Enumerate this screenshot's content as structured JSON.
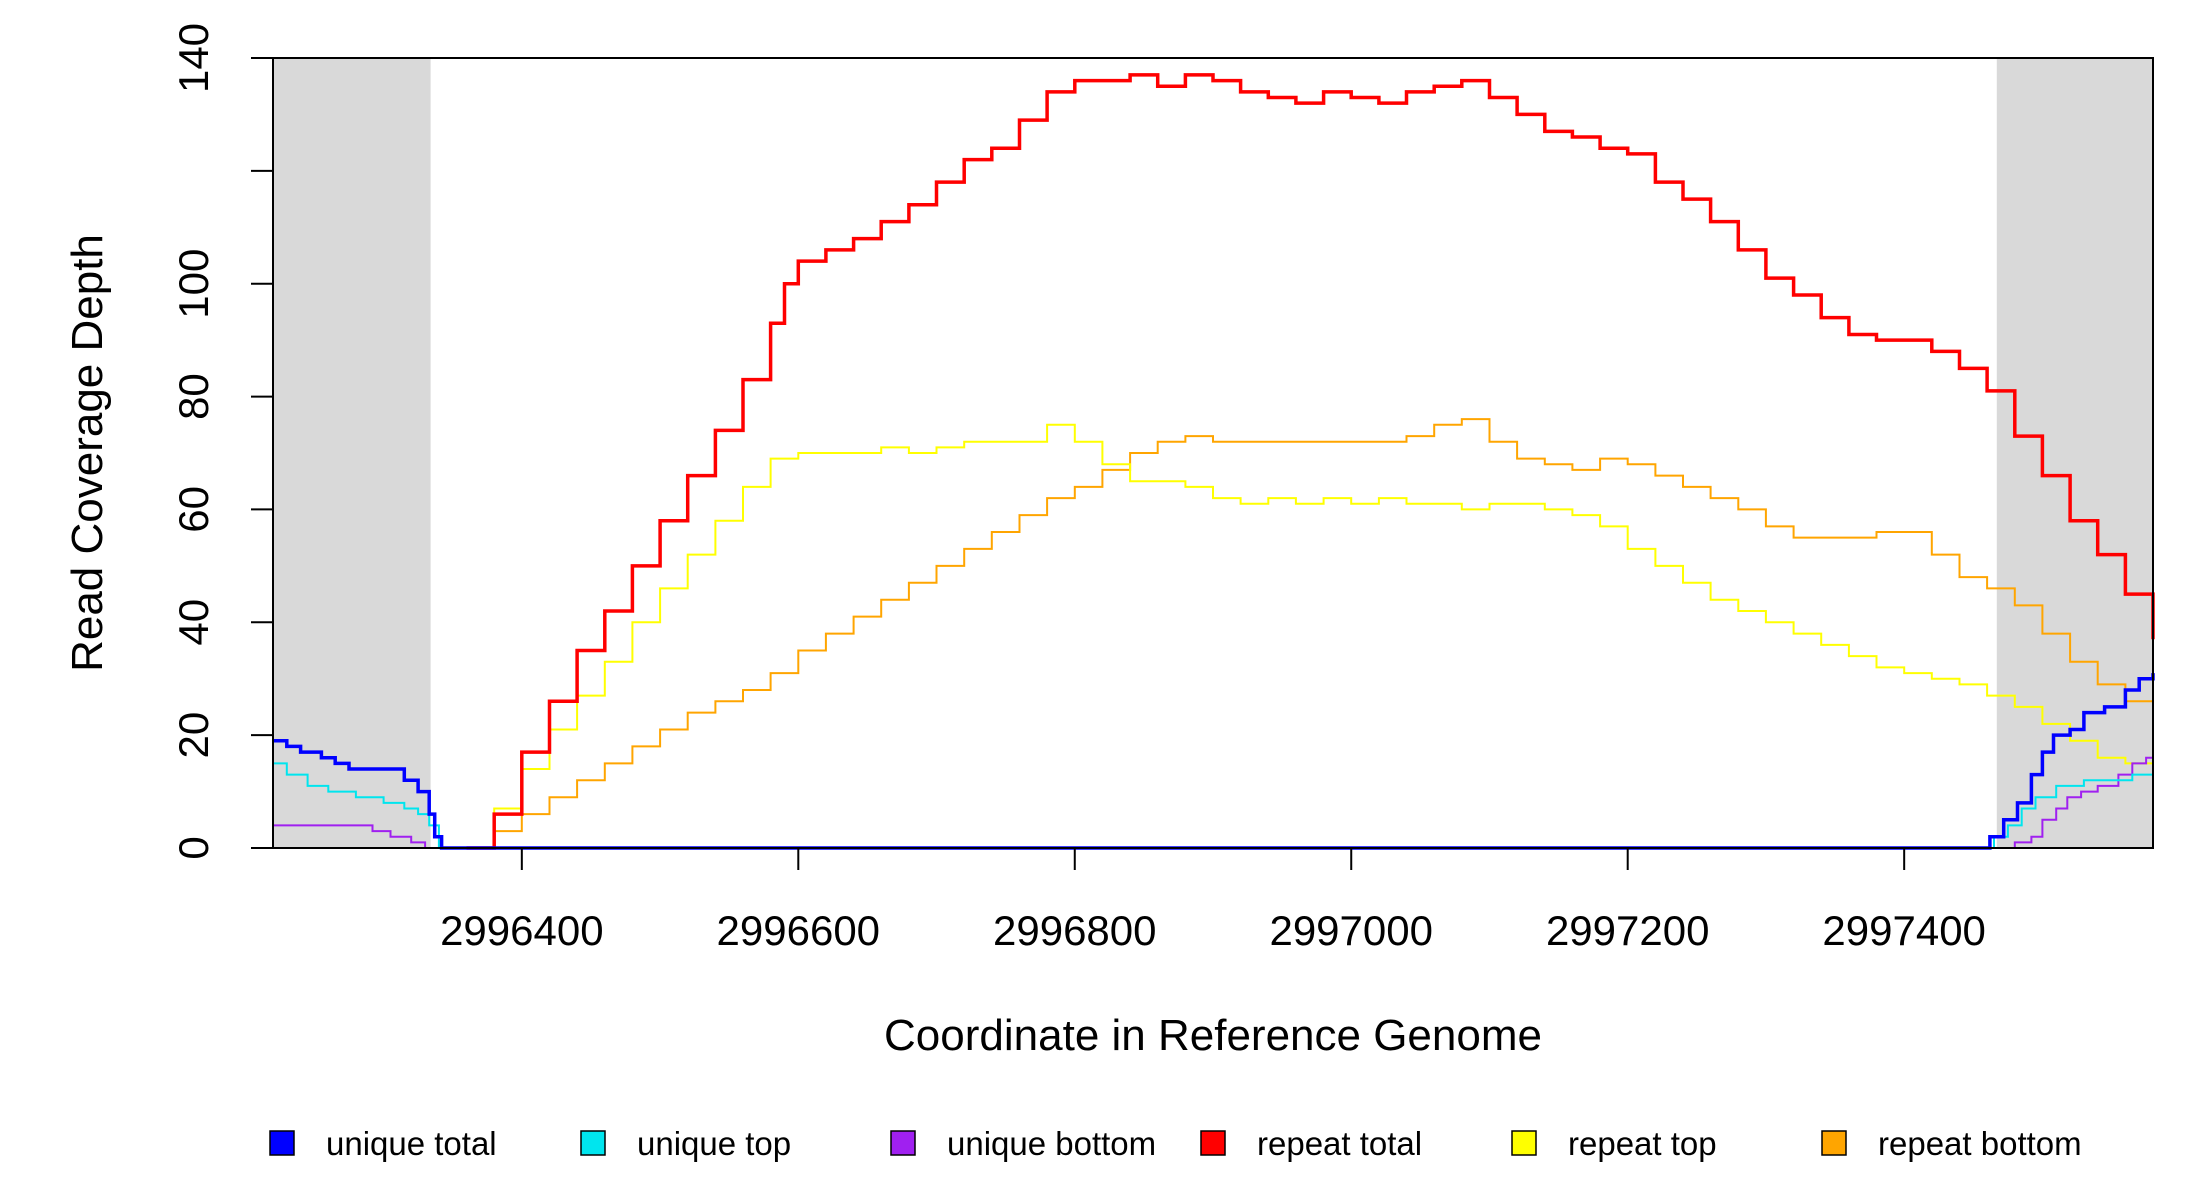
{
  "chart_data": {
    "type": "line",
    "title": "",
    "xlabel": "Coordinate in Reference Genome",
    "ylabel": "Read Coverage Depth",
    "xlim": [
      2996220,
      2997580
    ],
    "ylim": [
      0,
      140
    ],
    "x_ticks": [
      2996400,
      2996600,
      2996800,
      2997000,
      2997200,
      2997400
    ],
    "x_tick_labels": [
      "2996400",
      "2996600",
      "2996800",
      "2997000",
      "2997200",
      "2997400"
    ],
    "y_ticks": [
      0,
      20,
      40,
      60,
      80,
      100,
      120,
      140
    ],
    "y_tick_labels": [
      "0",
      "20",
      "40",
      "60",
      "80",
      "100",
      "",
      "140"
    ],
    "grid": false,
    "legend_position": "bottom",
    "shaded_regions": [
      [
        2996220,
        2996334
      ],
      [
        2997467,
        2997580
      ]
    ],
    "shade_color": "#d9d9d9",
    "series": [
      {
        "name": "unique total",
        "color": "#0000ff",
        "step": true,
        "width": 3.5,
        "points": [
          [
            2996220,
            19
          ],
          [
            2996230,
            18
          ],
          [
            2996240,
            17
          ],
          [
            2996255,
            16
          ],
          [
            2996265,
            15
          ],
          [
            2996275,
            14
          ],
          [
            2996300,
            14
          ],
          [
            2996315,
            12
          ],
          [
            2996325,
            10
          ],
          [
            2996333,
            6
          ],
          [
            2996337,
            2
          ],
          [
            2996342,
            0
          ],
          [
            2997445,
            0
          ],
          [
            2997462,
            2
          ],
          [
            2997472,
            5
          ],
          [
            2997482,
            8
          ],
          [
            2997492,
            13
          ],
          [
            2997500,
            17
          ],
          [
            2997508,
            20
          ],
          [
            2997520,
            21
          ],
          [
            2997530,
            24
          ],
          [
            2997545,
            25
          ],
          [
            2997560,
            28
          ],
          [
            2997570,
            30
          ],
          [
            2997580,
            31
          ]
        ]
      },
      {
        "name": "unique top",
        "color": "#00e5ee",
        "step": true,
        "width": 2,
        "points": [
          [
            2996220,
            15
          ],
          [
            2996230,
            13
          ],
          [
            2996245,
            11
          ],
          [
            2996260,
            10
          ],
          [
            2996280,
            9
          ],
          [
            2996300,
            8
          ],
          [
            2996315,
            7
          ],
          [
            2996325,
            6
          ],
          [
            2996333,
            4
          ],
          [
            2996340,
            0
          ],
          [
            2997450,
            0
          ],
          [
            2997465,
            2
          ],
          [
            2997475,
            4
          ],
          [
            2997485,
            7
          ],
          [
            2997495,
            9
          ],
          [
            2997510,
            11
          ],
          [
            2997530,
            12
          ],
          [
            2997550,
            12
          ],
          [
            2997565,
            13
          ],
          [
            2997580,
            14
          ]
        ]
      },
      {
        "name": "unique bottom",
        "color": "#a020f0",
        "step": true,
        "width": 2,
        "points": [
          [
            2996220,
            4
          ],
          [
            2996270,
            4
          ],
          [
            2996292,
            3
          ],
          [
            2996305,
            2
          ],
          [
            2996320,
            1
          ],
          [
            2996330,
            0
          ],
          [
            2997475,
            0
          ],
          [
            2997480,
            1
          ],
          [
            2997492,
            2
          ],
          [
            2997500,
            5
          ],
          [
            2997510,
            7
          ],
          [
            2997518,
            9
          ],
          [
            2997528,
            10
          ],
          [
            2997540,
            11
          ],
          [
            2997555,
            13
          ],
          [
            2997565,
            15
          ],
          [
            2997575,
            16
          ],
          [
            2997580,
            17
          ]
        ]
      },
      {
        "name": "repeat total",
        "color": "#ff0000",
        "step": true,
        "width": 3.5,
        "points": [
          [
            2996360,
            0
          ],
          [
            2996380,
            6
          ],
          [
            2996400,
            17
          ],
          [
            2996420,
            26
          ],
          [
            2996440,
            35
          ],
          [
            2996460,
            42
          ],
          [
            2996480,
            50
          ],
          [
            2996500,
            58
          ],
          [
            2996520,
            66
          ],
          [
            2996540,
            74
          ],
          [
            2996560,
            83
          ],
          [
            2996580,
            93
          ],
          [
            2996590,
            100
          ],
          [
            2996600,
            104
          ],
          [
            2996620,
            106
          ],
          [
            2996640,
            108
          ],
          [
            2996660,
            111
          ],
          [
            2996680,
            114
          ],
          [
            2996700,
            118
          ],
          [
            2996720,
            122
          ],
          [
            2996740,
            124
          ],
          [
            2996760,
            129
          ],
          [
            2996780,
            134
          ],
          [
            2996800,
            136
          ],
          [
            2996820,
            136
          ],
          [
            2996840,
            137
          ],
          [
            2996860,
            135
          ],
          [
            2996880,
            137
          ],
          [
            2996900,
            136
          ],
          [
            2996920,
            134
          ],
          [
            2996940,
            133
          ],
          [
            2996960,
            132
          ],
          [
            2996980,
            134
          ],
          [
            2997000,
            133
          ],
          [
            2997020,
            132
          ],
          [
            2997040,
            134
          ],
          [
            2997060,
            135
          ],
          [
            2997080,
            136
          ],
          [
            2997100,
            133
          ],
          [
            2997120,
            130
          ],
          [
            2997140,
            127
          ],
          [
            2997160,
            126
          ],
          [
            2997180,
            124
          ],
          [
            2997200,
            123
          ],
          [
            2997220,
            118
          ],
          [
            2997240,
            115
          ],
          [
            2997260,
            111
          ],
          [
            2997280,
            106
          ],
          [
            2997300,
            101
          ],
          [
            2997320,
            98
          ],
          [
            2997340,
            94
          ],
          [
            2997360,
            91
          ],
          [
            2997380,
            90
          ],
          [
            2997400,
            90
          ],
          [
            2997420,
            88
          ],
          [
            2997440,
            85
          ],
          [
            2997460,
            81
          ],
          [
            2997480,
            73
          ],
          [
            2997500,
            66
          ],
          [
            2997520,
            58
          ],
          [
            2997540,
            52
          ],
          [
            2997560,
            45
          ],
          [
            2997580,
            37
          ]
        ]
      },
      {
        "name": "repeat top",
        "color": "#ffff00",
        "step": true,
        "width": 2,
        "points": [
          [
            2996360,
            0
          ],
          [
            2996380,
            7
          ],
          [
            2996400,
            14
          ],
          [
            2996420,
            21
          ],
          [
            2996440,
            27
          ],
          [
            2996460,
            33
          ],
          [
            2996480,
            40
          ],
          [
            2996500,
            46
          ],
          [
            2996520,
            52
          ],
          [
            2996540,
            58
          ],
          [
            2996560,
            64
          ],
          [
            2996580,
            69
          ],
          [
            2996600,
            70
          ],
          [
            2996620,
            70
          ],
          [
            2996640,
            70
          ],
          [
            2996660,
            71
          ],
          [
            2996680,
            70
          ],
          [
            2996700,
            71
          ],
          [
            2996720,
            72
          ],
          [
            2996740,
            72
          ],
          [
            2996760,
            72
          ],
          [
            2996780,
            75
          ],
          [
            2996800,
            72
          ],
          [
            2996820,
            68
          ],
          [
            2996840,
            65
          ],
          [
            2996860,
            65
          ],
          [
            2996880,
            64
          ],
          [
            2996900,
            62
          ],
          [
            2996920,
            61
          ],
          [
            2996940,
            62
          ],
          [
            2996960,
            61
          ],
          [
            2996980,
            62
          ],
          [
            2997000,
            61
          ],
          [
            2997020,
            62
          ],
          [
            2997040,
            61
          ],
          [
            2997060,
            61
          ],
          [
            2997080,
            60
          ],
          [
            2997100,
            61
          ],
          [
            2997120,
            61
          ],
          [
            2997140,
            60
          ],
          [
            2997160,
            59
          ],
          [
            2997180,
            57
          ],
          [
            2997200,
            53
          ],
          [
            2997220,
            50
          ],
          [
            2997240,
            47
          ],
          [
            2997260,
            44
          ],
          [
            2997280,
            42
          ],
          [
            2997300,
            40
          ],
          [
            2997320,
            38
          ],
          [
            2997340,
            36
          ],
          [
            2997360,
            34
          ],
          [
            2997380,
            32
          ],
          [
            2997400,
            31
          ],
          [
            2997420,
            30
          ],
          [
            2997440,
            29
          ],
          [
            2997460,
            27
          ],
          [
            2997480,
            25
          ],
          [
            2997500,
            22
          ],
          [
            2997520,
            19
          ],
          [
            2997540,
            16
          ],
          [
            2997560,
            15
          ],
          [
            2997580,
            14
          ]
        ]
      },
      {
        "name": "repeat bottom",
        "color": "#ffa500",
        "step": true,
        "width": 2,
        "points": [
          [
            2996220,
            0
          ],
          [
            2996330,
            0
          ],
          [
            2996360,
            0
          ],
          [
            2996380,
            3
          ],
          [
            2996400,
            6
          ],
          [
            2996420,
            9
          ],
          [
            2996440,
            12
          ],
          [
            2996460,
            15
          ],
          [
            2996480,
            18
          ],
          [
            2996500,
            21
          ],
          [
            2996520,
            24
          ],
          [
            2996540,
            26
          ],
          [
            2996560,
            28
          ],
          [
            2996580,
            31
          ],
          [
            2996600,
            35
          ],
          [
            2996620,
            38
          ],
          [
            2996640,
            41
          ],
          [
            2996660,
            44
          ],
          [
            2996680,
            47
          ],
          [
            2996700,
            50
          ],
          [
            2996720,
            53
          ],
          [
            2996740,
            56
          ],
          [
            2996760,
            59
          ],
          [
            2996780,
            62
          ],
          [
            2996800,
            64
          ],
          [
            2996820,
            67
          ],
          [
            2996840,
            70
          ],
          [
            2996860,
            72
          ],
          [
            2996880,
            73
          ],
          [
            2996900,
            72
          ],
          [
            2996920,
            72
          ],
          [
            2996940,
            72
          ],
          [
            2996960,
            72
          ],
          [
            2996980,
            72
          ],
          [
            2997000,
            72
          ],
          [
            2997020,
            72
          ],
          [
            2997040,
            73
          ],
          [
            2997060,
            75
          ],
          [
            2997080,
            76
          ],
          [
            2997100,
            72
          ],
          [
            2997120,
            69
          ],
          [
            2997140,
            68
          ],
          [
            2997160,
            67
          ],
          [
            2997180,
            69
          ],
          [
            2997200,
            68
          ],
          [
            2997220,
            66
          ],
          [
            2997240,
            64
          ],
          [
            2997260,
            62
          ],
          [
            2997280,
            60
          ],
          [
            2997300,
            57
          ],
          [
            2997320,
            55
          ],
          [
            2997340,
            55
          ],
          [
            2997360,
            55
          ],
          [
            2997380,
            56
          ],
          [
            2997400,
            56
          ],
          [
            2997420,
            52
          ],
          [
            2997440,
            48
          ],
          [
            2997460,
            46
          ],
          [
            2997480,
            43
          ],
          [
            2997500,
            38
          ],
          [
            2997520,
            33
          ],
          [
            2997540,
            29
          ],
          [
            2997560,
            26
          ],
          [
            2997580,
            24
          ]
        ]
      }
    ]
  }
}
